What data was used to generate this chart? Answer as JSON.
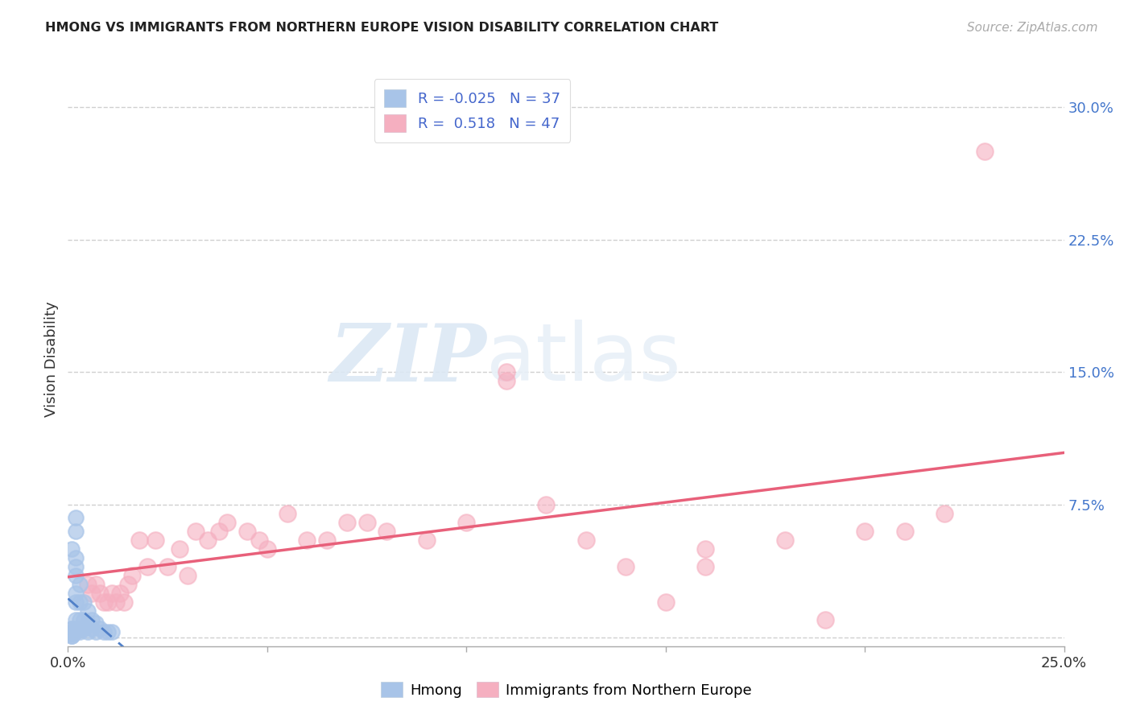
{
  "title": "HMONG VS IMMIGRANTS FROM NORTHERN EUROPE VISION DISABILITY CORRELATION CHART",
  "source": "Source: ZipAtlas.com",
  "ylabel": "Vision Disability",
  "xlim": [
    0.0,
    0.25
  ],
  "ylim": [
    -0.005,
    0.32
  ],
  "yticks": [
    0.0,
    0.075,
    0.15,
    0.225,
    0.3
  ],
  "ytick_labels": [
    "",
    "7.5%",
    "15.0%",
    "22.5%",
    "30.0%"
  ],
  "xticks": [
    0.0,
    0.05,
    0.1,
    0.15,
    0.2,
    0.25
  ],
  "xtick_labels": [
    "0.0%",
    "",
    "",
    "",
    "",
    "25.0%"
  ],
  "hmong_R": "-0.025",
  "hmong_N": "37",
  "northern_europe_R": "0.518",
  "northern_europe_N": "47",
  "hmong_color": "#a8c4e8",
  "northern_europe_color": "#f5afc0",
  "hmong_line_color": "#5080c8",
  "northern_europe_line_color": "#e8607a",
  "grid_color": "#d0d0d0",
  "background_color": "#ffffff",
  "watermark_zip": "ZIP",
  "watermark_atlas": "atlas",
  "hmong_x": [
    0.001,
    0.001,
    0.001,
    0.001,
    0.001,
    0.001,
    0.001,
    0.002,
    0.002,
    0.002,
    0.002,
    0.002,
    0.002,
    0.002,
    0.002,
    0.002,
    0.003,
    0.003,
    0.003,
    0.003,
    0.003,
    0.004,
    0.004,
    0.004,
    0.005,
    0.005,
    0.005,
    0.006,
    0.006,
    0.007,
    0.007,
    0.008,
    0.009,
    0.01,
    0.011,
    0.002,
    0.001
  ],
  "hmong_y": [
    0.005,
    0.005,
    0.003,
    0.002,
    0.002,
    0.001,
    0.001,
    0.06,
    0.045,
    0.04,
    0.035,
    0.025,
    0.02,
    0.01,
    0.005,
    0.003,
    0.03,
    0.02,
    0.01,
    0.005,
    0.003,
    0.02,
    0.01,
    0.005,
    0.015,
    0.008,
    0.003,
    0.01,
    0.005,
    0.008,
    0.003,
    0.005,
    0.003,
    0.003,
    0.003,
    0.068,
    0.05
  ],
  "ne_x": [
    0.005,
    0.006,
    0.007,
    0.008,
    0.009,
    0.01,
    0.011,
    0.012,
    0.013,
    0.014,
    0.015,
    0.016,
    0.018,
    0.02,
    0.022,
    0.025,
    0.028,
    0.03,
    0.032,
    0.035,
    0.038,
    0.04,
    0.045,
    0.048,
    0.05,
    0.055,
    0.06,
    0.065,
    0.07,
    0.075,
    0.08,
    0.09,
    0.1,
    0.11,
    0.12,
    0.13,
    0.14,
    0.16,
    0.18,
    0.2,
    0.11,
    0.15,
    0.16,
    0.19,
    0.21,
    0.22,
    0.23
  ],
  "ne_y": [
    0.03,
    0.025,
    0.03,
    0.025,
    0.02,
    0.02,
    0.025,
    0.02,
    0.025,
    0.02,
    0.03,
    0.035,
    0.055,
    0.04,
    0.055,
    0.04,
    0.05,
    0.035,
    0.06,
    0.055,
    0.06,
    0.065,
    0.06,
    0.055,
    0.05,
    0.07,
    0.055,
    0.055,
    0.065,
    0.065,
    0.06,
    0.055,
    0.065,
    0.145,
    0.075,
    0.055,
    0.04,
    0.05,
    0.055,
    0.06,
    0.15,
    0.02,
    0.04,
    0.01,
    0.06,
    0.07,
    0.275
  ]
}
